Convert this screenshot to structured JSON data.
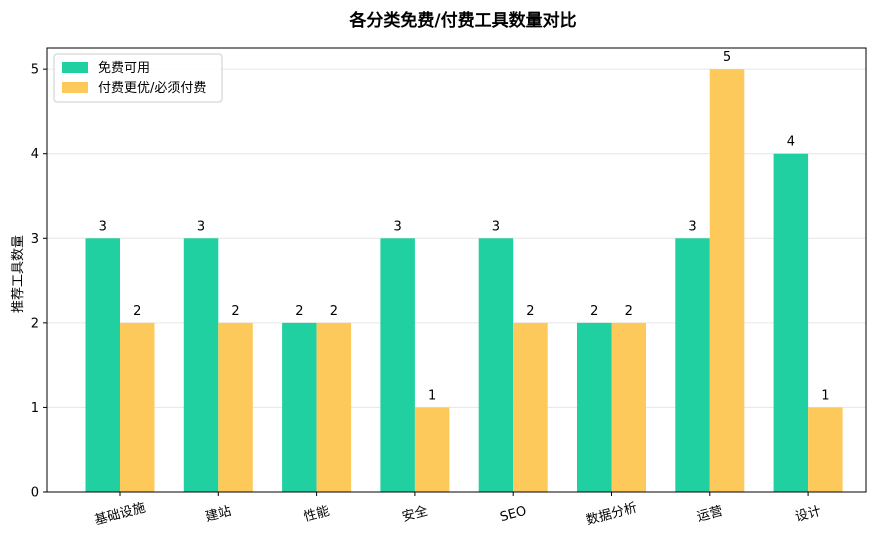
{
  "chart_data": {
    "type": "bar",
    "title": "各分类免费/付费工具数量对比",
    "xlabel": "",
    "ylabel": "推荐工具数量",
    "categories": [
      "基础设施",
      "建站",
      "性能",
      "安全",
      "SEO",
      "数据分析",
      "运营",
      "设计"
    ],
    "series": [
      {
        "name": "免费可用",
        "values": [
          3,
          3,
          2,
          3,
          3,
          2,
          3,
          4
        ],
        "color": "#20d0a0"
      },
      {
        "name": "付费更优/必须付费",
        "values": [
          2,
          2,
          2,
          1,
          2,
          2,
          5,
          1
        ],
        "color": "#fdc95a"
      }
    ],
    "ylim": [
      0,
      5.25
    ],
    "yticks": [
      "0",
      "1",
      "2",
      "3",
      "4",
      "5"
    ],
    "grid": true,
    "legend_position": "top-left"
  }
}
